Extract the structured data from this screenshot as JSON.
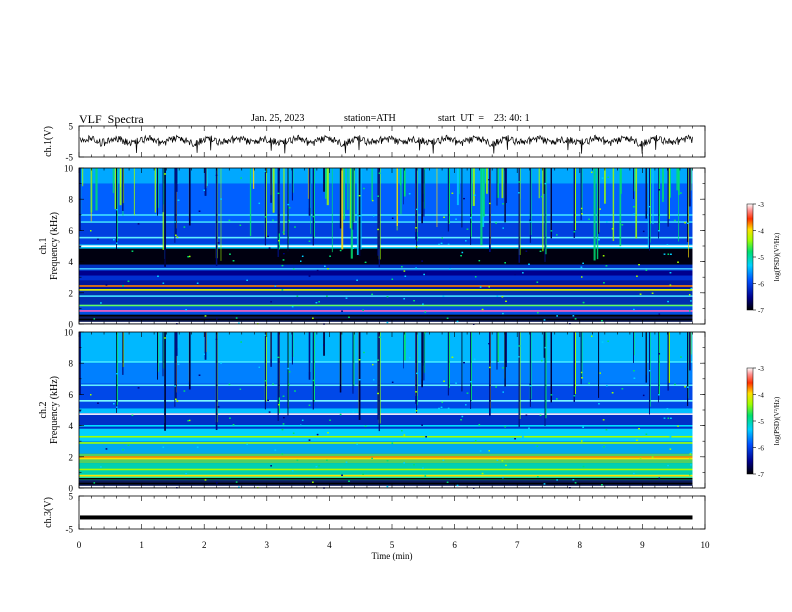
{
  "header": {
    "title": "VLF  Spectra",
    "date": "Jan. 25, 2023",
    "station": "station=ATH",
    "start": "start  UT  =    23: 40: 1"
  },
  "chart_data": [
    {
      "type": "line",
      "name": "ch1-waveform",
      "ylabel": "ch.1(V)",
      "yticks": [
        "5",
        "-5"
      ],
      "ylim": [
        -5,
        5
      ],
      "xlim": [
        0,
        10
      ],
      "data_end_min": 9.8,
      "approx_level_v": 0.2
    },
    {
      "type": "heatmap",
      "name": "ch1-spectrogram",
      "ylabel": "ch.1\nFrequency (kHz)",
      "ylabel_top": "ch.1",
      "ylabel_bottom": "Frequency  (kHz)",
      "yticks": [
        "0",
        "2",
        "4",
        "6",
        "8",
        "10"
      ],
      "ylim": [
        0,
        10
      ],
      "xlim": [
        0,
        10
      ],
      "colorbar": {
        "label": "log(PSD)(V²/Hz)",
        "ticks": [
          "-3",
          "-4",
          "-5",
          "-6",
          "-7"
        ],
        "range": [
          -7,
          -3
        ]
      }
    },
    {
      "type": "heatmap",
      "name": "ch2-spectrogram",
      "ylabel": "ch.2\nFrequency (kHz)",
      "ylabel_top": "ch.2",
      "ylabel_bottom": "Frequency  (kHz)",
      "yticks": [
        "0",
        "2",
        "4",
        "6",
        "8",
        "10"
      ],
      "ylim": [
        0,
        10
      ],
      "xlim": [
        0,
        10
      ],
      "colorbar": {
        "label": "log(PSD)(V²/Hz)",
        "ticks": [
          "-3",
          "-4",
          "-5",
          "-6",
          "-7"
        ],
        "range": [
          -7,
          -3
        ]
      }
    },
    {
      "type": "line",
      "name": "ch3-waveform",
      "ylabel": "ch.3(V)",
      "yticks": [
        "5",
        "-5"
      ],
      "ylim": [
        -5,
        5
      ],
      "xlim": [
        0,
        10
      ],
      "data_end_min": 9.8,
      "approx_level_v": -1.5
    }
  ],
  "xaxis": {
    "label": "Time  (min)",
    "ticks": [
      "0",
      "1",
      "2",
      "3",
      "4",
      "5",
      "6",
      "7",
      "8",
      "9",
      "10"
    ]
  }
}
